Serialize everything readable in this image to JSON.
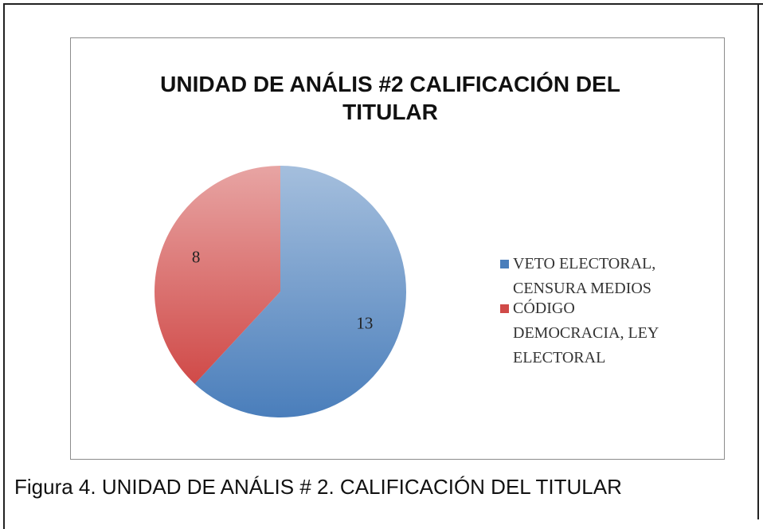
{
  "chart_data": {
    "type": "pie",
    "title": "UNIDAD DE ANÁLIS #2 CALIFICACIÓN DEL TITULAR",
    "categories": [
      "VETO ELECTORAL, CENSURA MEDIOS",
      "CÓDIGO DEMOCRACIA, LEY ELECTORAL"
    ],
    "values": [
      13,
      8
    ],
    "colors": [
      "#4a7ebb",
      "#d04a48"
    ],
    "legend": "right"
  },
  "caption": "Figura 4. UNIDAD DE ANÁLIS # 2. CALIFICACIÓN DEL TITULAR"
}
